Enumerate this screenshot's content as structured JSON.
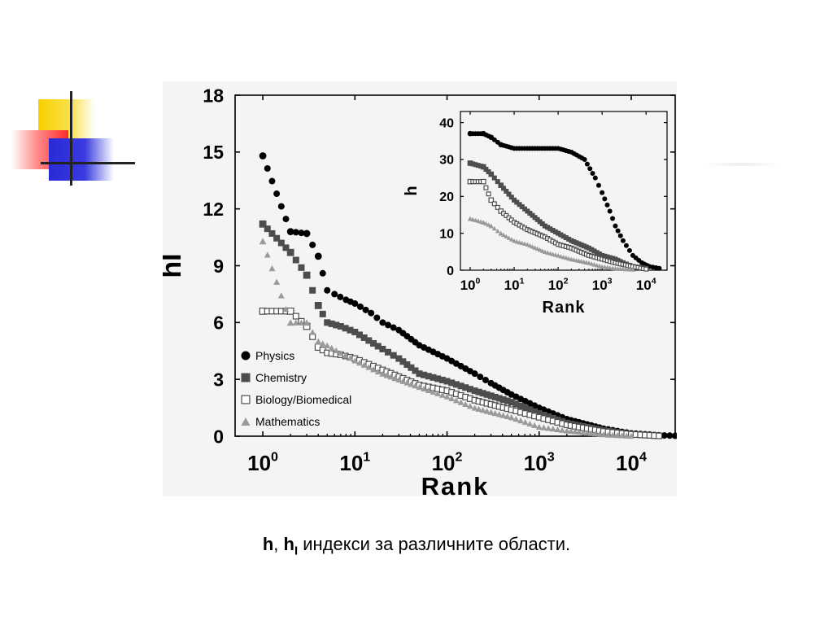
{
  "caption": {
    "h": "h",
    "sep": ", ",
    "hI_base": "h",
    "hI_sub": "I",
    "text": " индекси за различните области."
  },
  "colors": {
    "physics": "#000000",
    "chemistry": "#4d4d4d",
    "biology": "#4d4d4d",
    "mathematics": "#9a9a9a"
  },
  "chart_data": [
    {
      "type": "scatter",
      "xscale": "log",
      "xlabel": "Rank",
      "ylabel": "hI",
      "xlim": [
        0.5,
        30000
      ],
      "ylim": [
        0,
        18
      ],
      "yticks": [
        "0",
        "3",
        "6",
        "9",
        "12",
        "15",
        "18"
      ],
      "xticks": [
        {
          "base": "10",
          "exp": "0"
        },
        {
          "base": "10",
          "exp": "1"
        },
        {
          "base": "10",
          "exp": "2"
        },
        {
          "base": "10",
          "exp": "3"
        },
        {
          "base": "10",
          "exp": "4"
        }
      ],
      "legend": {
        "placement": "bottom-left"
      },
      "series": [
        {
          "name": "Physics",
          "marker": "circle",
          "points": [
            [
              1,
              14.8
            ],
            [
              2,
              10.8
            ],
            [
              3,
              10.7
            ],
            [
              4,
              9.5
            ],
            [
              5,
              7.7
            ],
            [
              6,
              7.5
            ],
            [
              8,
              7.2
            ],
            [
              10,
              7.0
            ],
            [
              15,
              6.5
            ],
            [
              20,
              6.0
            ],
            [
              30,
              5.6
            ],
            [
              50,
              4.8
            ],
            [
              100,
              4.1
            ],
            [
              200,
              3.3
            ],
            [
              300,
              2.8
            ],
            [
              500,
              2.2
            ],
            [
              1000,
              1.5
            ],
            [
              2000,
              0.9
            ],
            [
              5000,
              0.4
            ],
            [
              10000,
              0.15
            ],
            [
              20000,
              0.05
            ],
            [
              30000,
              0.02
            ]
          ]
        },
        {
          "name": "Chemistry",
          "marker": "square",
          "points": [
            [
              1,
              11.2
            ],
            [
              2,
              9.7
            ],
            [
              3,
              8.5
            ],
            [
              4,
              6.9
            ],
            [
              5,
              6.0
            ],
            [
              7,
              5.8
            ],
            [
              10,
              5.5
            ],
            [
              20,
              4.6
            ],
            [
              30,
              4.1
            ],
            [
              50,
              3.3
            ],
            [
              100,
              2.9
            ],
            [
              200,
              2.4
            ],
            [
              500,
              1.8
            ],
            [
              1000,
              1.2
            ],
            [
              2000,
              0.7
            ],
            [
              5000,
              0.3
            ],
            [
              10000,
              0.1
            ],
            [
              20000,
              0.02
            ]
          ]
        },
        {
          "name": "Biology/Biomedical",
          "marker": "open-square",
          "points": [
            [
              1,
              6.6
            ],
            [
              2,
              6.6
            ],
            [
              3,
              5.8
            ],
            [
              4,
              4.7
            ],
            [
              5,
              4.4
            ],
            [
              7,
              4.3
            ],
            [
              10,
              4.1
            ],
            [
              20,
              3.5
            ],
            [
              50,
              2.7
            ],
            [
              100,
              2.4
            ],
            [
              200,
              1.9
            ],
            [
              500,
              1.4
            ],
            [
              1000,
              1.0
            ],
            [
              2000,
              0.6
            ],
            [
              5000,
              0.25
            ],
            [
              10000,
              0.1
            ],
            [
              20000,
              0.02
            ]
          ]
        },
        {
          "name": "Mathematics",
          "marker": "triangle",
          "points": [
            [
              1,
              10.3
            ],
            [
              2,
              6.0
            ],
            [
              3,
              6.0
            ],
            [
              4,
              5.0
            ],
            [
              5,
              4.8
            ],
            [
              7,
              4.4
            ],
            [
              10,
              4.0
            ],
            [
              20,
              3.3
            ],
            [
              50,
              2.6
            ],
            [
              100,
              2.1
            ],
            [
              200,
              1.5
            ],
            [
              500,
              1.0
            ],
            [
              1000,
              0.5
            ],
            [
              2000,
              0.3
            ],
            [
              5000,
              0.1
            ],
            [
              10000,
              0.02
            ]
          ]
        }
      ]
    },
    {
      "type": "scatter",
      "xscale": "log",
      "xlabel": "Rank",
      "ylabel": "h",
      "xlim": [
        0.6,
        30000
      ],
      "ylim": [
        0,
        43
      ],
      "yticks": [
        "0",
        "10",
        "20",
        "30",
        "40"
      ],
      "xticks": [
        {
          "base": "10",
          "exp": "0"
        },
        {
          "base": "10",
          "exp": "1"
        },
        {
          "base": "10",
          "exp": "2"
        },
        {
          "base": "10",
          "exp": "3"
        },
        {
          "base": "10",
          "exp": "4"
        }
      ],
      "series": [
        {
          "name": "Physics",
          "marker": "circle",
          "points": [
            [
              1,
              37
            ],
            [
              2,
              37
            ],
            [
              3,
              36
            ],
            [
              5,
              34
            ],
            [
              10,
              33
            ],
            [
              20,
              33
            ],
            [
              50,
              33
            ],
            [
              100,
              33
            ],
            [
              200,
              32
            ],
            [
              400,
              30
            ],
            [
              700,
              25
            ],
            [
              1000,
              21
            ],
            [
              1500,
              16
            ],
            [
              2000,
              12
            ],
            [
              3000,
              8
            ],
            [
              5000,
              4
            ],
            [
              8000,
              2
            ],
            [
              12000,
              1
            ],
            [
              20000,
              0.5
            ]
          ]
        },
        {
          "name": "Chemistry",
          "marker": "square",
          "points": [
            [
              1,
              29
            ],
            [
              2,
              28
            ],
            [
              3,
              26
            ],
            [
              5,
              23
            ],
            [
              10,
              19
            ],
            [
              20,
              16
            ],
            [
              50,
              12
            ],
            [
              100,
              10
            ],
            [
              200,
              8
            ],
            [
              500,
              6
            ],
            [
              1000,
              4
            ],
            [
              2000,
              3
            ],
            [
              3000,
              2
            ],
            [
              5000,
              1
            ],
            [
              10000,
              0.5
            ]
          ]
        },
        {
          "name": "Biology/Biomedical",
          "marker": "open-square",
          "points": [
            [
              1,
              24
            ],
            [
              2,
              24
            ],
            [
              3,
              19
            ],
            [
              5,
              16
            ],
            [
              10,
              13
            ],
            [
              20,
              11
            ],
            [
              50,
              9
            ],
            [
              100,
              7
            ],
            [
              200,
              6
            ],
            [
              500,
              4
            ],
            [
              1000,
              3
            ],
            [
              2000,
              2
            ],
            [
              5000,
              1
            ],
            [
              10000,
              0.3
            ]
          ]
        },
        {
          "name": "Mathematics",
          "marker": "triangle",
          "points": [
            [
              1,
              14
            ],
            [
              2,
              13
            ],
            [
              3,
              12
            ],
            [
              5,
              10
            ],
            [
              10,
              8
            ],
            [
              20,
              7
            ],
            [
              50,
              5
            ],
            [
              100,
              4
            ],
            [
              200,
              3
            ],
            [
              500,
              2
            ],
            [
              1000,
              1
            ],
            [
              2000,
              0.5
            ],
            [
              5000,
              0.2
            ]
          ]
        }
      ]
    }
  ]
}
